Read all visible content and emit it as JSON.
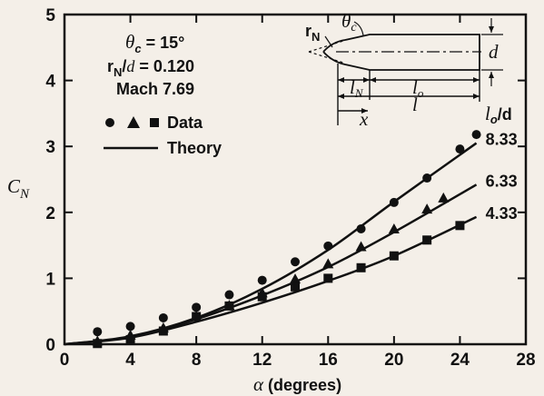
{
  "chart_data": {
    "type": "scatter",
    "xlabel": "α (degrees)",
    "ylabel": "C_N",
    "xlim": [
      0,
      28
    ],
    "ylim": [
      0,
      5
    ],
    "x_ticks": [
      "0",
      "4",
      "8",
      "12",
      "16",
      "20",
      "24",
      "28"
    ],
    "y_ticks": [
      "0",
      "1",
      "2",
      "3",
      "4",
      "5"
    ],
    "grid": false,
    "legend_position": "top-left",
    "legend": {
      "data_label": "Data",
      "theory_label": "Theory"
    },
    "conditions": {
      "theta_c": "θ_c = 15°",
      "rn_d": "r_N/d = 0.120",
      "mach": "Mach 7.69"
    },
    "param_header": "l_o/d",
    "series": [
      {
        "name": "8.33",
        "marker": "circle",
        "points": [
          [
            2,
            0.19
          ],
          [
            4,
            0.27
          ],
          [
            6,
            0.4
          ],
          [
            8,
            0.56
          ],
          [
            10,
            0.75
          ],
          [
            12,
            0.97
          ],
          [
            14,
            1.25
          ],
          [
            16,
            1.49
          ],
          [
            18,
            1.75
          ],
          [
            20,
            2.15
          ],
          [
            22,
            2.52
          ],
          [
            24,
            2.96
          ],
          [
            25,
            3.18
          ]
        ],
        "theory": [
          [
            0,
            0
          ],
          [
            4,
            0.12
          ],
          [
            8,
            0.4
          ],
          [
            12,
            0.84
          ],
          [
            16,
            1.43
          ],
          [
            20,
            2.16
          ],
          [
            25,
            3.05
          ]
        ]
      },
      {
        "name": "6.33",
        "marker": "triangle",
        "points": [
          [
            2,
            0.05
          ],
          [
            4,
            0.14
          ],
          [
            6,
            0.25
          ],
          [
            8,
            0.43
          ],
          [
            10,
            0.59
          ],
          [
            12,
            0.78
          ],
          [
            14,
            0.99
          ],
          [
            16,
            1.22
          ],
          [
            18,
            1.48
          ],
          [
            20,
            1.75
          ],
          [
            22,
            2.05
          ],
          [
            23,
            2.22
          ]
        ],
        "theory": [
          [
            0,
            0
          ],
          [
            4,
            0.11
          ],
          [
            8,
            0.38
          ],
          [
            12,
            0.74
          ],
          [
            16,
            1.17
          ],
          [
            20,
            1.7
          ],
          [
            25,
            2.42
          ]
        ]
      },
      {
        "name": "4.33",
        "marker": "square",
        "points": [
          [
            2,
            0.01
          ],
          [
            4,
            0.07
          ],
          [
            6,
            0.2
          ],
          [
            8,
            0.42
          ],
          [
            10,
            0.58
          ],
          [
            12,
            0.72
          ],
          [
            14,
            0.87
          ],
          [
            16,
            1.0
          ],
          [
            18,
            1.16
          ],
          [
            20,
            1.34
          ],
          [
            22,
            1.58
          ],
          [
            24,
            1.8
          ]
        ],
        "theory": [
          [
            0,
            0
          ],
          [
            4,
            0.1
          ],
          [
            8,
            0.34
          ],
          [
            12,
            0.63
          ],
          [
            16,
            0.96
          ],
          [
            20,
            1.34
          ],
          [
            25,
            1.93
          ]
        ]
      }
    ]
  },
  "schematic": {
    "r_n": "r_N",
    "theta_c": "θc",
    "d": "d",
    "l_n": "l_N",
    "l_o": "l_o",
    "l": "l",
    "x": "x"
  }
}
